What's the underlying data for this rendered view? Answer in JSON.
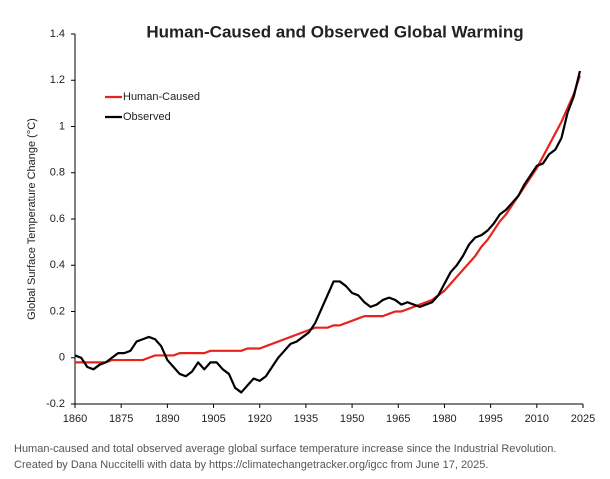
{
  "chart_data": {
    "type": "line",
    "title": "Human-Caused and Observed Global Warming",
    "y_label": "Global Surface Temperature Change (°C)",
    "caption": "Human-caused and total observed average global surface temperature increase since the Industrial Revolution. Created by Dana Nuccitelli with data by https://climatechangetracker.org/igcc from June 17, 2025.",
    "x": [
      1860,
      1862,
      1864,
      1866,
      1868,
      1870,
      1872,
      1874,
      1876,
      1878,
      1880,
      1882,
      1884,
      1886,
      1888,
      1890,
      1892,
      1894,
      1896,
      1898,
      1900,
      1902,
      1904,
      1906,
      1908,
      1910,
      1912,
      1914,
      1916,
      1918,
      1920,
      1922,
      1924,
      1926,
      1928,
      1930,
      1932,
      1934,
      1936,
      1938,
      1940,
      1942,
      1944,
      1946,
      1948,
      1950,
      1952,
      1954,
      1956,
      1958,
      1960,
      1962,
      1964,
      1966,
      1968,
      1970,
      1972,
      1974,
      1976,
      1978,
      1980,
      1982,
      1984,
      1986,
      1988,
      1990,
      1992,
      1994,
      1996,
      1998,
      2000,
      2002,
      2004,
      2006,
      2008,
      2010,
      2012,
      2014,
      2016,
      2018,
      2020,
      2022,
      2024
    ],
    "series": [
      {
        "name": "Human-Caused",
        "color": "#e8231d",
        "values": [
          -0.02,
          -0.02,
          -0.02,
          -0.02,
          -0.02,
          -0.02,
          -0.01,
          -0.01,
          -0.01,
          -0.01,
          -0.01,
          -0.01,
          0.0,
          0.01,
          0.01,
          0.01,
          0.01,
          0.02,
          0.02,
          0.02,
          0.02,
          0.02,
          0.03,
          0.03,
          0.03,
          0.03,
          0.03,
          0.03,
          0.04,
          0.04,
          0.04,
          0.05,
          0.06,
          0.07,
          0.08,
          0.09,
          0.1,
          0.11,
          0.12,
          0.13,
          0.13,
          0.13,
          0.14,
          0.14,
          0.15,
          0.16,
          0.17,
          0.18,
          0.18,
          0.18,
          0.18,
          0.19,
          0.2,
          0.2,
          0.21,
          0.22,
          0.23,
          0.24,
          0.25,
          0.27,
          0.29,
          0.32,
          0.35,
          0.38,
          0.41,
          0.44,
          0.48,
          0.51,
          0.55,
          0.59,
          0.62,
          0.66,
          0.7,
          0.74,
          0.78,
          0.82,
          0.87,
          0.92,
          0.97,
          1.02,
          1.08,
          1.14,
          1.22
        ]
      },
      {
        "name": "Observed",
        "color": "#000000",
        "values": [
          0.01,
          0.0,
          -0.04,
          -0.05,
          -0.03,
          -0.02,
          0.0,
          0.02,
          0.02,
          0.03,
          0.07,
          0.08,
          0.09,
          0.08,
          0.05,
          -0.01,
          -0.04,
          -0.07,
          -0.08,
          -0.06,
          -0.02,
          -0.05,
          -0.02,
          -0.02,
          -0.05,
          -0.07,
          -0.13,
          -0.15,
          -0.12,
          -0.09,
          -0.1,
          -0.08,
          -0.04,
          0.0,
          0.03,
          0.06,
          0.07,
          0.09,
          0.11,
          0.15,
          0.21,
          0.27,
          0.33,
          0.33,
          0.31,
          0.28,
          0.27,
          0.24,
          0.22,
          0.23,
          0.25,
          0.26,
          0.25,
          0.23,
          0.24,
          0.23,
          0.22,
          0.23,
          0.24,
          0.27,
          0.32,
          0.37,
          0.4,
          0.44,
          0.49,
          0.52,
          0.53,
          0.55,
          0.58,
          0.62,
          0.64,
          0.67,
          0.7,
          0.75,
          0.79,
          0.83,
          0.84,
          0.88,
          0.9,
          0.95,
          1.06,
          1.13,
          1.24
        ]
      }
    ],
    "xlim": [
      1860,
      2025
    ],
    "xticks": [
      1860,
      1875,
      1890,
      1905,
      1920,
      1935,
      1950,
      1965,
      1980,
      1995,
      2010,
      2025
    ],
    "ylim": [
      -0.2,
      1.4
    ],
    "yticks": [
      -0.2,
      0,
      0.2,
      0.4,
      0.6,
      0.8,
      1,
      1.2,
      1.4
    ],
    "legend": "upper-left",
    "grid": false
  }
}
